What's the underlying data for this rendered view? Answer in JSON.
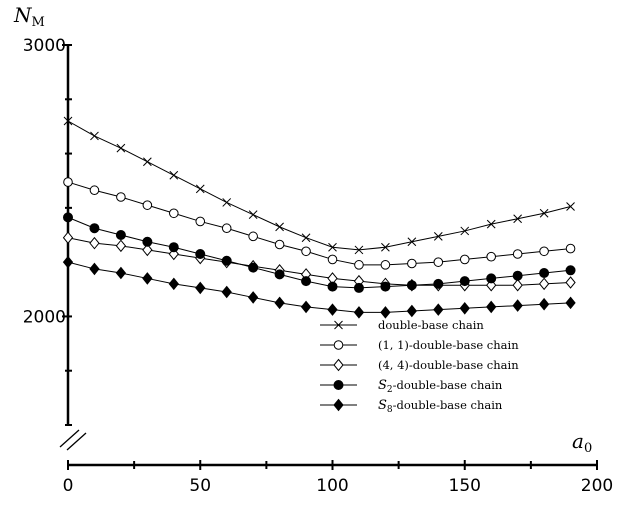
{
  "chart_data": {
    "type": "line",
    "title": "",
    "xlabel": "a",
    "xlabel_sub": "0",
    "ylabel": "N",
    "ylabel_sub": "M",
    "xlim": [
      0,
      200
    ],
    "ylim": [
      1600,
      3000
    ],
    "x_ticks": [
      0,
      50,
      100,
      150,
      200
    ],
    "x_tick_labels": [
      "0",
      "50",
      "100",
      "150",
      "200"
    ],
    "y_ticks": [
      2000,
      3000
    ],
    "y_tick_labels": [
      "2000",
      "3000"
    ],
    "grid": false,
    "legend_position": "lower-right",
    "x": [
      0,
      10,
      20,
      30,
      40,
      50,
      60,
      70,
      80,
      90,
      100,
      110,
      120,
      130,
      140,
      150,
      160,
      170,
      180,
      190
    ],
    "series": [
      {
        "name": "double-base chain",
        "marker": "x",
        "values": [
          2720,
          2665,
          2620,
          2570,
          2520,
          2470,
          2420,
          2375,
          2330,
          2290,
          2255,
          2245,
          2255,
          2275,
          2295,
          2315,
          2340,
          2360,
          2380,
          2405
        ]
      },
      {
        "name_pre": "(1, 1)-double-base chain",
        "marker": "open-circle",
        "values": [
          2495,
          2465,
          2440,
          2410,
          2380,
          2350,
          2325,
          2295,
          2265,
          2240,
          2210,
          2190,
          2190,
          2195,
          2200,
          2210,
          2220,
          2230,
          2240,
          2250
        ]
      },
      {
        "name_pre": "(4, 4)-double-base chain",
        "marker": "open-diamond",
        "values": [
          2290,
          2270,
          2260,
          2245,
          2230,
          2215,
          2200,
          2185,
          2170,
          2155,
          2140,
          2130,
          2120,
          2115,
          2115,
          2115,
          2115,
          2115,
          2120,
          2125
        ]
      },
      {
        "name_script": "S",
        "name_sub": "2",
        "name_rest": "-double-base chain",
        "marker": "filled-circle",
        "values": [
          2365,
          2325,
          2300,
          2275,
          2255,
          2230,
          2205,
          2180,
          2155,
          2130,
          2110,
          2105,
          2110,
          2115,
          2120,
          2130,
          2140,
          2150,
          2160,
          2170
        ]
      },
      {
        "name_script": "S",
        "name_sub": "8",
        "name_rest": "-double-base chain",
        "marker": "filled-diamond",
        "values": [
          2200,
          2175,
          2160,
          2140,
          2120,
          2105,
          2090,
          2070,
          2050,
          2035,
          2025,
          2015,
          2015,
          2020,
          2025,
          2030,
          2035,
          2040,
          2045,
          2050
        ]
      }
    ]
  }
}
